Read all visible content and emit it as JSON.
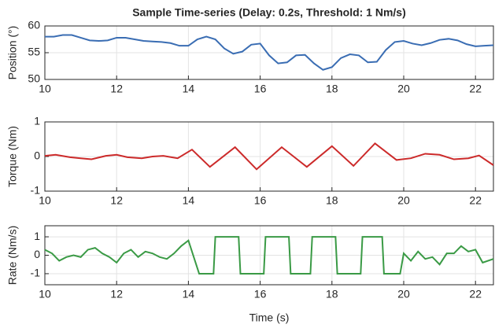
{
  "chart_data": [
    {
      "type": "line",
      "title": "Sample Time-series (Delay: 0.2s, Threshold: 1 Nm/s)",
      "ylabel": "Position (°)",
      "x": [
        10,
        10.25,
        10.5,
        10.75,
        11,
        11.25,
        11.5,
        11.75,
        12,
        12.25,
        12.5,
        12.75,
        13,
        13.25,
        13.5,
        13.75,
        14,
        14.25,
        14.5,
        14.75,
        15,
        15.25,
        15.5,
        15.75,
        16,
        16.25,
        16.5,
        16.75,
        17,
        17.25,
        17.5,
        17.75,
        18,
        18.25,
        18.5,
        18.75,
        19,
        19.25,
        19.5,
        19.75,
        20,
        20.25,
        20.5,
        20.75,
        21,
        21.25,
        21.5,
        21.75,
        22,
        22.25,
        22.5
      ],
      "series": [
        {
          "color": "#3a6db3",
          "values": [
            58,
            58,
            58.3,
            58.3,
            57.8,
            57.3,
            57.2,
            57.3,
            57.8,
            57.8,
            57.5,
            57.2,
            57.1,
            57.0,
            56.8,
            56.3,
            56.3,
            57.5,
            58,
            57.5,
            55.8,
            54.8,
            55.2,
            56.5,
            56.7,
            54.5,
            53,
            53.2,
            54.5,
            54.6,
            53,
            51.8,
            52.3,
            54,
            54.7,
            54.5,
            53.2,
            53.3,
            55.5,
            57,
            57.2,
            56.7,
            56.4,
            56.8,
            57.4,
            57.6,
            57.3,
            56.6,
            56.2,
            56.3,
            56.4
          ]
        }
      ],
      "xlim": [
        10,
        22.5
      ],
      "xticks": [
        10,
        12,
        14,
        16,
        18,
        20,
        22
      ],
      "ylim": [
        50,
        60
      ],
      "yticks": [
        50,
        55,
        60
      ],
      "grid": true
    },
    {
      "type": "line",
      "ylabel": "Torque (Nm)",
      "x": [
        10,
        10.3,
        10.7,
        11,
        11.3,
        11.7,
        12,
        12.3,
        12.7,
        13,
        13.3,
        13.7,
        14.1,
        14.6,
        15.3,
        15.9,
        16.6,
        17.3,
        18,
        18.6,
        19.2,
        19.8,
        20.2,
        20.6,
        21,
        21.4,
        21.8,
        22.1,
        22.5
      ],
      "series": [
        {
          "color": "#cc2a2a",
          "values": [
            0.02,
            0.05,
            -0.02,
            -0.05,
            -0.08,
            0.02,
            0.05,
            -0.02,
            -0.05,
            0,
            0.02,
            -0.05,
            0.2,
            -0.3,
            0.27,
            -0.37,
            0.27,
            -0.3,
            0.3,
            -0.27,
            0.38,
            -0.1,
            -0.05,
            0.08,
            0.05,
            -0.08,
            -0.05,
            0.03,
            -0.25
          ]
        }
      ],
      "xlim": [
        10,
        22.5
      ],
      "xticks": [
        10,
        12,
        14,
        16,
        18,
        20,
        22
      ],
      "ylim": [
        -1,
        1
      ],
      "yticks": [
        -1,
        0,
        1
      ],
      "grid": true
    },
    {
      "type": "line",
      "ylabel": "Rate (Nm/s)",
      "xlabel": "Time (s)",
      "x": [
        10,
        10.2,
        10.4,
        10.6,
        10.8,
        11,
        11.2,
        11.4,
        11.6,
        11.8,
        12,
        12.2,
        12.4,
        12.6,
        12.8,
        13,
        13.2,
        13.4,
        13.6,
        13.8,
        14,
        14.3,
        14.7,
        14.75,
        15.4,
        15.45,
        16.1,
        16.15,
        16.8,
        16.85,
        17.4,
        17.45,
        18.1,
        18.15,
        18.8,
        18.85,
        19.4,
        19.45,
        19.9,
        20,
        20.2,
        20.4,
        20.6,
        20.8,
        21,
        21.2,
        21.4,
        21.6,
        21.8,
        22,
        22.2,
        22.5
      ],
      "series": [
        {
          "color": "#3a9a45",
          "values": [
            0.3,
            0.1,
            -0.3,
            -0.1,
            0,
            -0.1,
            0.3,
            0.4,
            0.1,
            -0.1,
            -0.4,
            0.1,
            0.3,
            -0.1,
            0.2,
            0.1,
            -0.1,
            -0.2,
            0.1,
            0.5,
            0.8,
            -1,
            -1,
            1,
            1,
            -1,
            -1,
            1,
            1,
            -1,
            -1,
            1,
            1,
            -1,
            -1,
            1,
            1,
            -1,
            -1,
            0.1,
            -0.3,
            0.2,
            -0.2,
            -0.1,
            -0.5,
            0.1,
            0.1,
            0.5,
            0.2,
            0.3,
            -0.4,
            -0.2
          ]
        }
      ],
      "xlim": [
        10,
        22.5
      ],
      "xticks": [
        10,
        12,
        14,
        16,
        18,
        20,
        22
      ],
      "ylim": [
        -1.6,
        1.6
      ],
      "yticks": [
        -1,
        0,
        1
      ],
      "grid": true
    }
  ]
}
